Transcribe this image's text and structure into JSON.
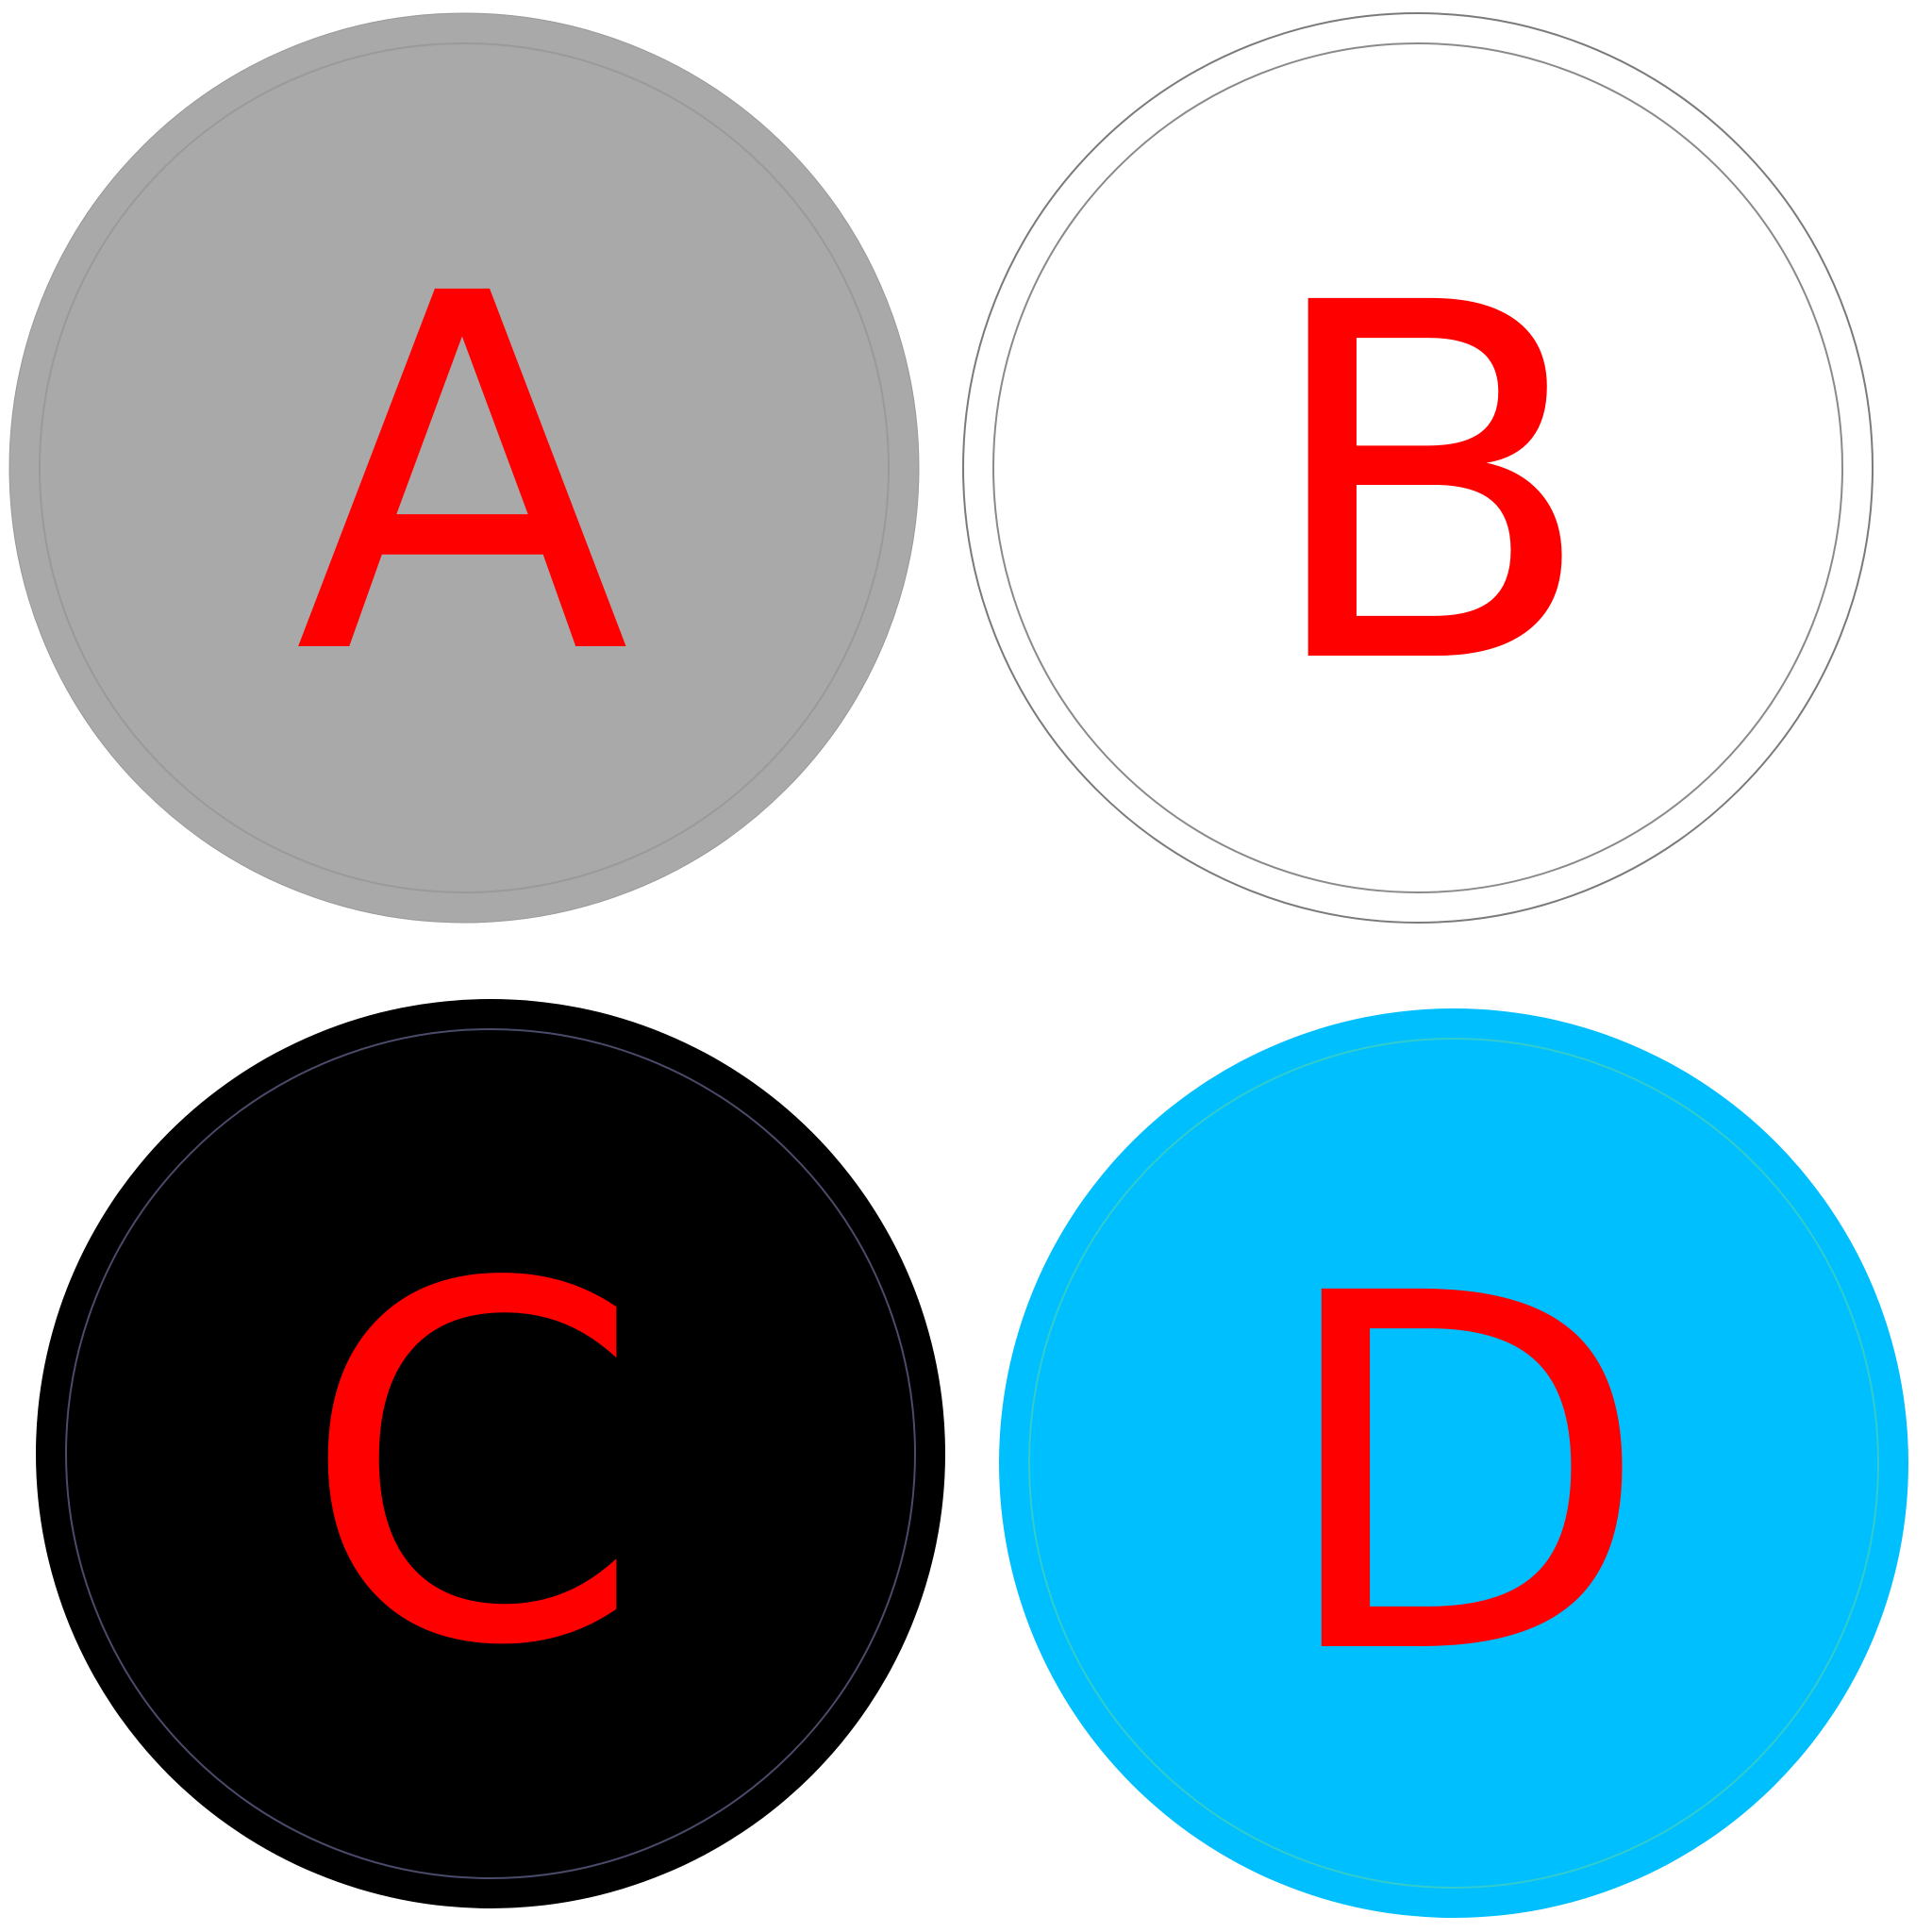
{
  "circles": [
    {
      "label": "A",
      "fill": "#a9a9a9",
      "inner_ring": "#9a9a9a",
      "text_color": "#ff0000"
    },
    {
      "label": "B",
      "fill": "#ffffff",
      "inner_ring": "#8a8a8a",
      "text_color": "#ff0000"
    },
    {
      "label": "C",
      "fill": "#000000",
      "inner_ring": "#4a4a6a",
      "text_color": "#ff0000"
    },
    {
      "label": "D",
      "fill": "#00bfff",
      "inner_ring": "#33cccc",
      "text_color": "#ff0000"
    }
  ]
}
